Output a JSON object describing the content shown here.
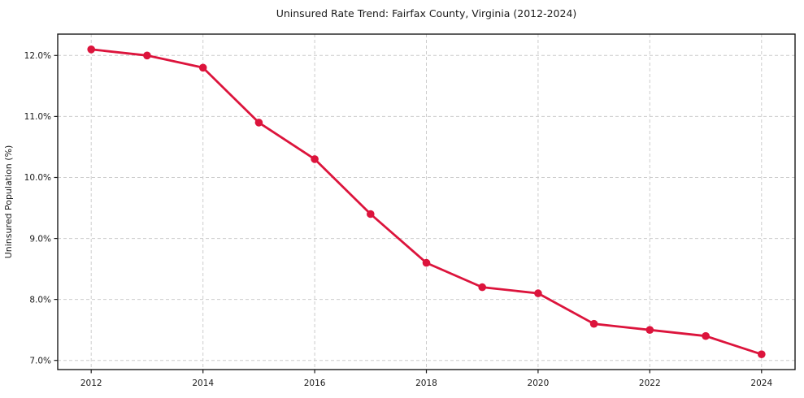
{
  "chart_data": {
    "type": "line",
    "title": "Uninsured Rate Trend: Fairfax County, Virginia (2012-2024)",
    "xlabel": "",
    "ylabel": "Uninsured Population (%)",
    "x": [
      2012,
      2013,
      2014,
      2015,
      2016,
      2017,
      2018,
      2019,
      2020,
      2021,
      2022,
      2023,
      2024
    ],
    "values": [
      12.1,
      12.0,
      11.8,
      10.9,
      10.3,
      9.4,
      8.6,
      8.2,
      8.1,
      7.6,
      7.5,
      7.4,
      7.1
    ],
    "xlim": [
      2011.4,
      2024.6
    ],
    "ylim": [
      6.85,
      12.35
    ],
    "xticks": [
      2012,
      2014,
      2016,
      2018,
      2020,
      2022,
      2024
    ],
    "xtick_labels": [
      "2012",
      "2014",
      "2016",
      "2018",
      "2020",
      "2022",
      "2024"
    ],
    "yticks": [
      7,
      8,
      9,
      10,
      11,
      12
    ],
    "ytick_labels": [
      "7.0%",
      "8.0%",
      "9.0%",
      "10.0%",
      "11.0%",
      "12.0%"
    ],
    "grid": true,
    "grid_style": "dashed",
    "legend": "none",
    "line_color": "#dc143c",
    "marker": "circle",
    "grid_color": "#cccccc",
    "spine_color": "#1a1a1a",
    "background": "#ffffff"
  }
}
